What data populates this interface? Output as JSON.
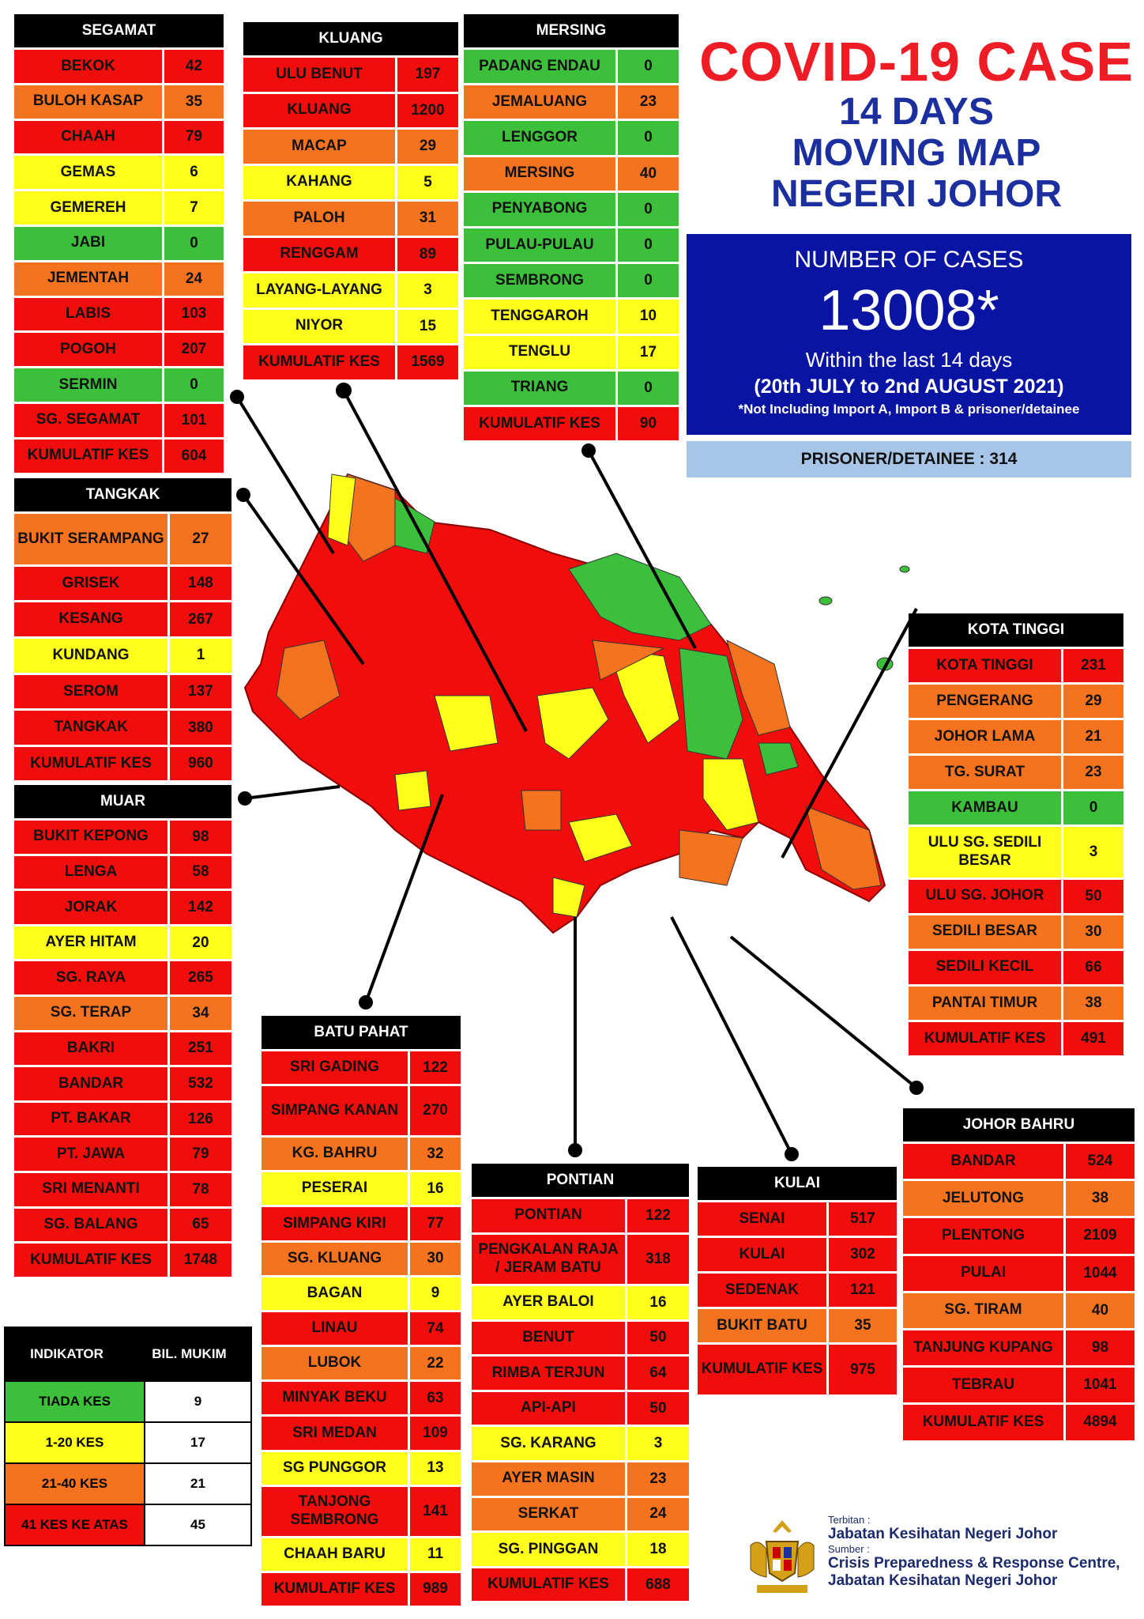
{
  "title": {
    "line1": "COVID-19 CASE",
    "line2": "14 DAYS",
    "line3": "MOVING MAP",
    "line4": "NEGERI JOHOR"
  },
  "summary": {
    "label": "NUMBER OF CASES",
    "number": "13008*",
    "within": "Within the last 14 days",
    "dates": "(20th JULY to 2nd AUGUST 2021)",
    "note": "*Not Including Import A, Import B & prisoner/detainee",
    "prisoner": "PRISONER/DETAINEE : 314"
  },
  "colors": {
    "red": "#f20d0d",
    "orange": "#f5731e",
    "yellow": "#ffff1a",
    "green": "#3cc03c"
  },
  "districts": {
    "segamat": {
      "name": "SEGAMAT",
      "rows": [
        {
          "name": "BEKOK",
          "value": "42",
          "color": "red"
        },
        {
          "name": "BULOH KASAP",
          "value": "35",
          "color": "orange"
        },
        {
          "name": "CHAAH",
          "value": "79",
          "color": "red"
        },
        {
          "name": "GEMAS",
          "value": "6",
          "color": "yellow"
        },
        {
          "name": "GEMEREH",
          "value": "7",
          "color": "yellow"
        },
        {
          "name": "JABI",
          "value": "0",
          "color": "green"
        },
        {
          "name": "JEMENTAH",
          "value": "24",
          "color": "orange"
        },
        {
          "name": "LABIS",
          "value": "103",
          "color": "red"
        },
        {
          "name": "POGOH",
          "value": "207",
          "color": "red"
        },
        {
          "name": "SERMIN",
          "value": "0",
          "color": "green"
        },
        {
          "name": "SG. SEGAMAT",
          "value": "101",
          "color": "red"
        },
        {
          "name": "KUMULATIF KES",
          "value": "604",
          "color": "red"
        }
      ]
    },
    "kluang": {
      "name": "KLUANG",
      "rows": [
        {
          "name": "ULU BENUT",
          "value": "197",
          "color": "red"
        },
        {
          "name": "KLUANG",
          "value": "1200",
          "color": "red"
        },
        {
          "name": "MACAP",
          "value": "29",
          "color": "orange"
        },
        {
          "name": "KAHANG",
          "value": "5",
          "color": "yellow"
        },
        {
          "name": "PALOH",
          "value": "31",
          "color": "orange"
        },
        {
          "name": "RENGGAM",
          "value": "89",
          "color": "red"
        },
        {
          "name": "LAYANG-LAYANG",
          "value": "3",
          "color": "yellow"
        },
        {
          "name": "NIYOR",
          "value": "15",
          "color": "yellow"
        },
        {
          "name": "KUMULATIF KES",
          "value": "1569",
          "color": "red"
        }
      ]
    },
    "mersing": {
      "name": "MERSING",
      "rows": [
        {
          "name": "PADANG ENDAU",
          "value": "0",
          "color": "green"
        },
        {
          "name": "JEMALUANG",
          "value": "23",
          "color": "orange"
        },
        {
          "name": "LENGGOR",
          "value": "0",
          "color": "green"
        },
        {
          "name": "MERSING",
          "value": "40",
          "color": "orange"
        },
        {
          "name": "PENYABONG",
          "value": "0",
          "color": "green"
        },
        {
          "name": "PULAU-PULAU",
          "value": "0",
          "color": "green"
        },
        {
          "name": "SEMBRONG",
          "value": "0",
          "color": "green"
        },
        {
          "name": "TENGGAROH",
          "value": "10",
          "color": "yellow"
        },
        {
          "name": "TENGLU",
          "value": "17",
          "color": "yellow"
        },
        {
          "name": "TRIANG",
          "value": "0",
          "color": "green"
        },
        {
          "name": "KUMULATIF KES",
          "value": "90",
          "color": "red"
        }
      ]
    },
    "tangkak": {
      "name": "TANGKAK",
      "rows": [
        {
          "name": "BUKIT SERAMPANG",
          "value": "27",
          "color": "orange"
        },
        {
          "name": "GRISEK",
          "value": "148",
          "color": "red"
        },
        {
          "name": "KESANG",
          "value": "267",
          "color": "red"
        },
        {
          "name": "KUNDANG",
          "value": "1",
          "color": "yellow"
        },
        {
          "name": "SEROM",
          "value": "137",
          "color": "red"
        },
        {
          "name": "TANGKAK",
          "value": "380",
          "color": "red"
        },
        {
          "name": "KUMULATIF KES",
          "value": "960",
          "color": "red"
        }
      ]
    },
    "muar": {
      "name": "MUAR",
      "rows": [
        {
          "name": "BUKIT KEPONG",
          "value": "98",
          "color": "red"
        },
        {
          "name": "LENGA",
          "value": "58",
          "color": "red"
        },
        {
          "name": "JORAK",
          "value": "142",
          "color": "red"
        },
        {
          "name": "AYER HITAM",
          "value": "20",
          "color": "yellow"
        },
        {
          "name": "SG. RAYA",
          "value": "265",
          "color": "red"
        },
        {
          "name": "SG. TERAP",
          "value": "34",
          "color": "orange"
        },
        {
          "name": "BAKRI",
          "value": "251",
          "color": "red"
        },
        {
          "name": "BANDAR",
          "value": "532",
          "color": "red"
        },
        {
          "name": "PT. BAKAR",
          "value": "126",
          "color": "red"
        },
        {
          "name": "PT. JAWA",
          "value": "79",
          "color": "red"
        },
        {
          "name": "SRI MENANTI",
          "value": "78",
          "color": "red"
        },
        {
          "name": "SG. BALANG",
          "value": "65",
          "color": "red"
        },
        {
          "name": "KUMULATIF KES",
          "value": "1748",
          "color": "red"
        }
      ]
    },
    "kota_tinggi": {
      "name": "KOTA TINGGI",
      "rows": [
        {
          "name": "KOTA TINGGI",
          "value": "231",
          "color": "red"
        },
        {
          "name": "PENGERANG",
          "value": "29",
          "color": "orange"
        },
        {
          "name": "JOHOR LAMA",
          "value": "21",
          "color": "orange"
        },
        {
          "name": "TG. SURAT",
          "value": "23",
          "color": "orange"
        },
        {
          "name": "KAMBAU",
          "value": "0",
          "color": "green"
        },
        {
          "name": "ULU SG. SEDILI BESAR",
          "value": "3",
          "color": "yellow"
        },
        {
          "name": "ULU  SG. JOHOR",
          "value": "50",
          "color": "red"
        },
        {
          "name": "SEDILI BESAR",
          "value": "30",
          "color": "orange"
        },
        {
          "name": "SEDILI KECIL",
          "value": "66",
          "color": "red"
        },
        {
          "name": "PANTAI TIMUR",
          "value": "38",
          "color": "orange"
        },
        {
          "name": "KUMULATIF KES",
          "value": "491",
          "color": "red"
        }
      ]
    },
    "batu_pahat": {
      "name": "BATU PAHAT",
      "rows": [
        {
          "name": "SRI GADING",
          "value": "122",
          "color": "red"
        },
        {
          "name": "SIMPANG KANAN",
          "value": "270",
          "color": "red"
        },
        {
          "name": "KG. BAHRU",
          "value": "32",
          "color": "orange"
        },
        {
          "name": "PESERAI",
          "value": "16",
          "color": "yellow"
        },
        {
          "name": "SIMPANG KIRI",
          "value": "77",
          "color": "red"
        },
        {
          "name": "SG. KLUANG",
          "value": "30",
          "color": "orange"
        },
        {
          "name": "BAGAN",
          "value": "9",
          "color": "yellow"
        },
        {
          "name": "LINAU",
          "value": "74",
          "color": "red"
        },
        {
          "name": "LUBOK",
          "value": "22",
          "color": "orange"
        },
        {
          "name": "MINYAK BEKU",
          "value": "63",
          "color": "red"
        },
        {
          "name": "SRI MEDAN",
          "value": "109",
          "color": "red"
        },
        {
          "name": "SG PUNGGOR",
          "value": "13",
          "color": "yellow"
        },
        {
          "name": "TANJONG SEMBRONG",
          "value": "141",
          "color": "red"
        },
        {
          "name": "CHAAH BARU",
          "value": "11",
          "color": "yellow"
        },
        {
          "name": "KUMULATIF KES",
          "value": "989",
          "color": "red"
        }
      ]
    },
    "pontian": {
      "name": "PONTIAN",
      "rows": [
        {
          "name": "PONTIAN",
          "value": "122",
          "color": "red"
        },
        {
          "name": "PENGKALAN RAJA / JERAM BATU",
          "value": "318",
          "color": "red"
        },
        {
          "name": "AYER BALOI",
          "value": "16",
          "color": "yellow"
        },
        {
          "name": "BENUT",
          "value": "50",
          "color": "red"
        },
        {
          "name": "RIMBA TERJUN",
          "value": "64",
          "color": "red"
        },
        {
          "name": "API-API",
          "value": "50",
          "color": "red"
        },
        {
          "name": "SG. KARANG",
          "value": "3",
          "color": "yellow"
        },
        {
          "name": "AYER MASIN",
          "value": "23",
          "color": "orange"
        },
        {
          "name": "SERKAT",
          "value": "24",
          "color": "orange"
        },
        {
          "name": "SG. PINGGAN",
          "value": "18",
          "color": "yellow"
        },
        {
          "name": "KUMULATIF KES",
          "value": "688",
          "color": "red"
        }
      ]
    },
    "kulai": {
      "name": "KULAI",
      "rows": [
        {
          "name": "SENAI",
          "value": "517",
          "color": "red"
        },
        {
          "name": "KULAI",
          "value": "302",
          "color": "red"
        },
        {
          "name": "SEDENAK",
          "value": "121",
          "color": "red"
        },
        {
          "name": "BUKIT BATU",
          "value": "35",
          "color": "orange"
        },
        {
          "name": "KUMULATIF KES",
          "value": "975",
          "color": "red"
        }
      ]
    },
    "johor_bahru": {
      "name": "JOHOR BAHRU",
      "rows": [
        {
          "name": "BANDAR",
          "value": "524",
          "color": "red"
        },
        {
          "name": "JELUTONG",
          "value": "38",
          "color": "orange"
        },
        {
          "name": "PLENTONG",
          "value": "2109",
          "color": "red"
        },
        {
          "name": "PULAI",
          "value": "1044",
          "color": "red"
        },
        {
          "name": "SG. TIRAM",
          "value": "40",
          "color": "orange"
        },
        {
          "name": "TANJUNG KUPANG",
          "value": "98",
          "color": "red"
        },
        {
          "name": "TEBRAU",
          "value": "1041",
          "color": "red"
        },
        {
          "name": "KUMULATIF KES",
          "value": "4894",
          "color": "red"
        }
      ]
    }
  },
  "legend": {
    "header_indicator": "INDIKATOR",
    "header_count": "BIL. MUKIM",
    "rows": [
      {
        "label": "TIADA KES",
        "count": "9",
        "color": "green"
      },
      {
        "label": "1-20 KES",
        "count": "17",
        "color": "yellow"
      },
      {
        "label": "21-40 KES",
        "count": "21",
        "color": "orange"
      },
      {
        "label": "41 KES KE ATAS",
        "count": "45",
        "color": "red"
      }
    ]
  },
  "footer": {
    "terbitan": "Terbitan :",
    "publisher": "Jabatan Kesihatan Negeri Johor",
    "sumber": "Sumber :",
    "source1": "Crisis Preparedness & Response Centre,",
    "source2": "Jabatan Kesihatan Negeri Johor"
  }
}
